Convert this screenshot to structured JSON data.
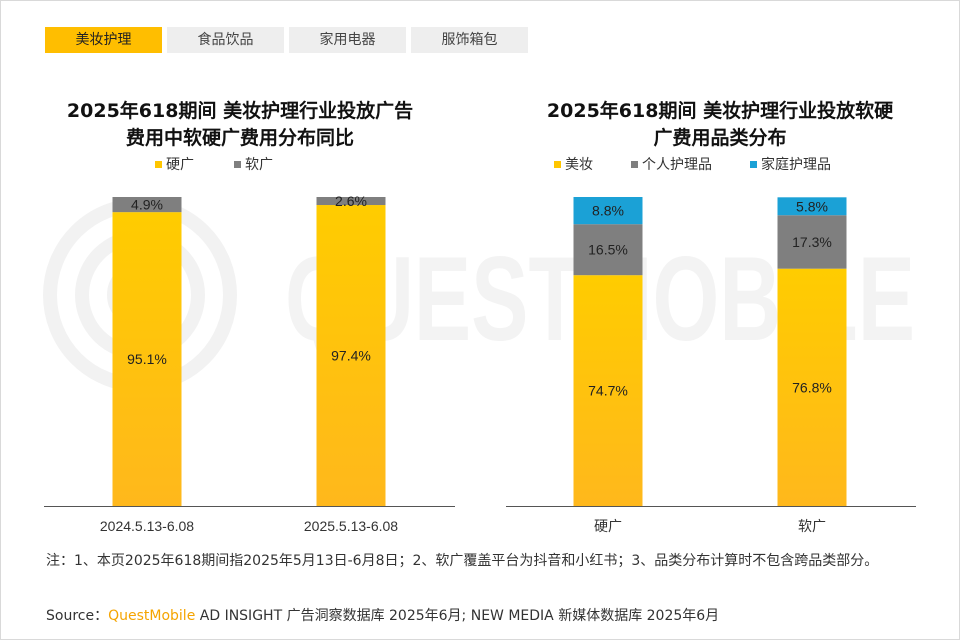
{
  "tabs": [
    {
      "label": "美妆护理",
      "active": true
    },
    {
      "label": "食品饮品",
      "active": false
    },
    {
      "label": "家用电器",
      "active": false
    },
    {
      "label": "服饰箱包",
      "active": false
    }
  ],
  "watermark": "QUESTMOBILE",
  "colors": {
    "accent": "#ffbe00",
    "bar_yellow": "#ffc600",
    "bar_gray": "#7f7f7f",
    "bar_blue": "#1ba1d6"
  },
  "chart_data": [
    {
      "type": "bar",
      "stacked": true,
      "percent": true,
      "title_lines": [
        "2025年618期间 美妆护理行业投放广告",
        "费用中软硬广费用分布同比"
      ],
      "categories": [
        "2024.5.13-6.08",
        "2025.5.13-6.08"
      ],
      "series": [
        {
          "name": "硬广",
          "values": [
            95.1,
            97.4
          ],
          "labels": [
            "95.1%",
            "97.4%"
          ],
          "color": "#ffc600"
        },
        {
          "name": "软广",
          "values": [
            4.9,
            2.6
          ],
          "labels": [
            "4.9%",
            "2.6%"
          ],
          "color": "#7f7f7f"
        }
      ],
      "ylim": [
        0,
        100
      ],
      "grid": false,
      "legend": "top"
    },
    {
      "type": "bar",
      "stacked": true,
      "percent": true,
      "title_lines": [
        "2025年618期间 美妆护理行业投放软硬",
        "广费用品类分布"
      ],
      "categories": [
        "硬广",
        "软广"
      ],
      "series": [
        {
          "name": "美妆",
          "values": [
            74.7,
            76.8
          ],
          "labels": [
            "74.7%",
            "76.8%"
          ],
          "color": "#ffc600"
        },
        {
          "name": "个人护理品",
          "values": [
            16.5,
            17.3
          ],
          "labels": [
            "16.5%",
            "17.3%"
          ],
          "color": "#7f7f7f"
        },
        {
          "name": "家庭护理品",
          "values": [
            8.8,
            5.8
          ],
          "labels": [
            "8.8%",
            "5.8%"
          ],
          "color": "#1ba1d6"
        }
      ],
      "ylim": [
        0,
        100
      ],
      "grid": false,
      "legend": "top"
    }
  ],
  "note": "注：1、本页2025年618期间指2025年5月13日-6月8日；2、软广覆盖平台为抖音和小红书；3、品类分布计算时不包含跨品类部分。",
  "source": {
    "prefix": "Source：",
    "brand": "QuestMobile",
    "rest": " AD INSIGHT 广告洞察数据库 2025年6月; NEW MEDIA 新媒体数据库 2025年6月"
  }
}
